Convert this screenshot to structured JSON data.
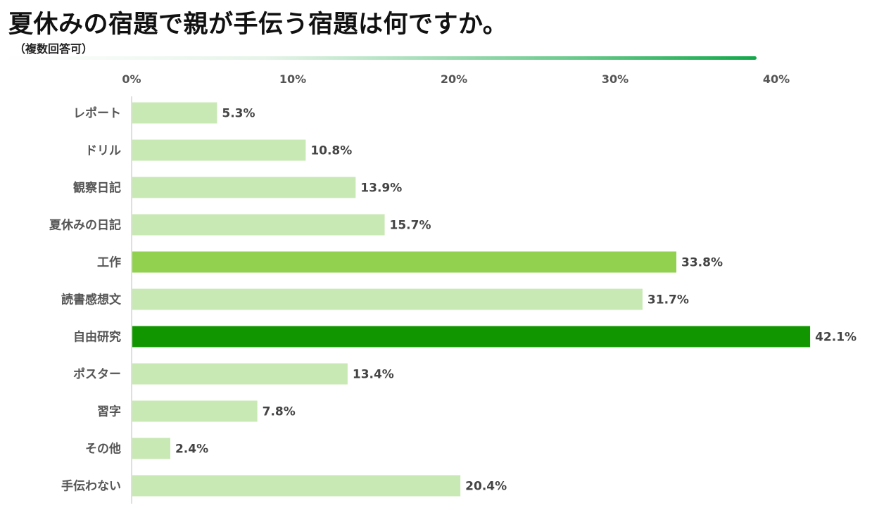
{
  "header": {
    "title": "夏休みの宿題で親が手伝う宿題は何ですか。",
    "subtitle": "（複数回答可）"
  },
  "colors": {
    "default_bar": "#c8e8b4",
    "highlight_second": "#92d050",
    "highlight_top": "#129600",
    "axis": "#bfbfbf",
    "accent_rule": "#12a84a"
  },
  "chart_data": {
    "type": "bar",
    "orientation": "horizontal",
    "title": "夏休みの宿題で親が手伝う宿題は何ですか。",
    "subtitle": "（複数回答可）",
    "xlabel": "",
    "ylabel": "",
    "unit": "%",
    "xlim": [
      0,
      40
    ],
    "x_ticks": [
      "0%",
      "10%",
      "20%",
      "30%",
      "40%"
    ],
    "x_tick_values": [
      0,
      10,
      20,
      30,
      40
    ],
    "x_axis_position": "top",
    "grid": false,
    "legend": "none",
    "categories": [
      "レポート",
      "ドリル",
      "観察日記",
      "夏休みの日記",
      "工作",
      "読書感想文",
      "自由研究",
      "ポスター",
      "習字",
      "その他",
      "手伝わない"
    ],
    "values": [
      5.3,
      10.8,
      13.9,
      15.7,
      33.8,
      31.7,
      42.1,
      13.4,
      7.8,
      2.4,
      20.4
    ],
    "value_labels": [
      "5.3%",
      "10.8%",
      "13.9%",
      "15.7%",
      "33.8%",
      "31.7%",
      "42.1%",
      "13.4%",
      "7.8%",
      "2.4%",
      "20.4%"
    ],
    "bar_colors": [
      "#c8e8b4",
      "#c8e8b4",
      "#c8e8b4",
      "#c8e8b4",
      "#92d050",
      "#c8e8b4",
      "#129600",
      "#c8e8b4",
      "#c8e8b4",
      "#c8e8b4",
      "#c8e8b4"
    ]
  }
}
